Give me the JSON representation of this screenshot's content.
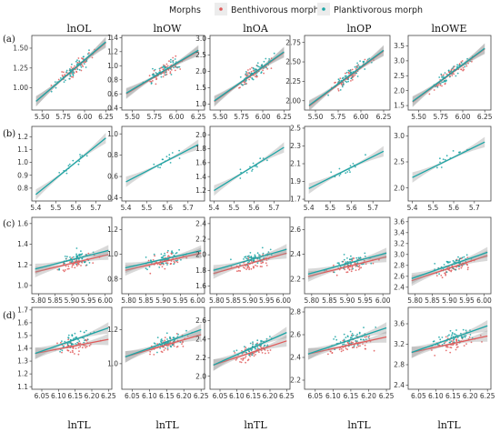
{
  "legend": {
    "title": "Morphs",
    "items": [
      {
        "label": "Benthivorous morph",
        "color": "#e05a5a"
      },
      {
        "label": "Planktivorous morph",
        "color": "#1aa5a5"
      }
    ]
  },
  "columns": [
    "lnOL",
    "lnOW",
    "lnOA",
    "lnOP",
    "lnOWE"
  ],
  "rows": [
    "(a)",
    "(b)",
    "(c)",
    "(d)"
  ],
  "xlabel": "lnTL",
  "chart_data": [
    {
      "row": "(a)",
      "col": "lnOL",
      "type": "scatter",
      "x_ticks": [
        "5.50",
        "5.75",
        "6.00",
        "6.25"
      ],
      "y_ticks": [
        "1.00",
        "1.25",
        "1.50"
      ],
      "xlim": [
        5.38,
        6.32
      ],
      "ylim": [
        0.72,
        1.66
      ],
      "fits": [
        {
          "series": "Benthivorous morph",
          "x": [
            5.43,
            6.25
          ],
          "y": [
            0.83,
            1.57
          ]
        },
        {
          "series": "Planktivorous morph",
          "x": [
            5.43,
            6.25
          ],
          "y": [
            0.83,
            1.58
          ]
        }
      ]
    },
    {
      "row": "(a)",
      "col": "lnOW",
      "type": "scatter",
      "x_ticks": [
        "5.50",
        "5.75",
        "6.00",
        "6.25"
      ],
      "y_ticks": [
        "0.4",
        "0.6",
        "0.8",
        "1.0",
        "1.2",
        "1.4"
      ],
      "xlim": [
        5.38,
        6.32
      ],
      "ylim": [
        0.37,
        1.43
      ],
      "fits": [
        {
          "series": "Benthivorous morph",
          "x": [
            5.43,
            6.25
          ],
          "y": [
            0.6,
            1.21
          ]
        },
        {
          "series": "Planktivorous morph",
          "x": [
            5.43,
            6.25
          ],
          "y": [
            0.61,
            1.22
          ]
        }
      ]
    },
    {
      "row": "(a)",
      "col": "lnOA",
      "type": "scatter",
      "x_ticks": [
        "5.50",
        "5.75",
        "6.00",
        "6.25"
      ],
      "y_ticks": [
        "1.0",
        "1.5",
        "2.0",
        "2.5",
        "3.0"
      ],
      "xlim": [
        5.38,
        6.32
      ],
      "ylim": [
        0.82,
        3.1
      ],
      "fits": [
        {
          "series": "Benthivorous morph",
          "x": [
            5.43,
            6.25
          ],
          "y": [
            1.08,
            2.58
          ]
        },
        {
          "series": "Planktivorous morph",
          "x": [
            5.43,
            6.25
          ],
          "y": [
            1.1,
            2.6
          ]
        }
      ]
    },
    {
      "row": "(a)",
      "col": "lnOP",
      "type": "scatter",
      "x_ticks": [
        "5.50",
        "5.75",
        "6.00",
        "6.25"
      ],
      "y_ticks": [
        "2.00",
        "2.25",
        "2.50",
        "2.75"
      ],
      "xlim": [
        5.38,
        6.32
      ],
      "ylim": [
        1.88,
        2.84
      ],
      "fits": [
        {
          "series": "Benthivorous morph",
          "x": [
            5.43,
            6.25
          ],
          "y": [
            1.93,
            2.64
          ]
        },
        {
          "series": "Planktivorous morph",
          "x": [
            5.43,
            6.25
          ],
          "y": [
            1.94,
            2.65
          ]
        }
      ]
    },
    {
      "row": "(a)",
      "col": "lnOWE",
      "type": "scatter",
      "x_ticks": [
        "5.50",
        "5.75",
        "6.00",
        "6.25"
      ],
      "y_ticks": [
        "1.5",
        "2.0",
        "2.5",
        "3.0",
        "3.5"
      ],
      "xlim": [
        5.38,
        6.32
      ],
      "ylim": [
        1.35,
        3.85
      ],
      "fits": [
        {
          "series": "Benthivorous morph",
          "x": [
            5.43,
            6.25
          ],
          "y": [
            1.62,
            3.4
          ]
        },
        {
          "series": "Planktivorous morph",
          "x": [
            5.43,
            6.25
          ],
          "y": [
            1.64,
            3.42
          ]
        }
      ]
    },
    {
      "row": "(b)",
      "col": "lnOL",
      "type": "scatter",
      "x_ticks": [
        "5.4",
        "5.5",
        "5.6",
        "5.7"
      ],
      "y_ticks": [
        "0.8",
        "0.9",
        "1.0",
        "1.1",
        "1.2"
      ],
      "xlim": [
        5.38,
        5.78
      ],
      "ylim": [
        0.7,
        1.28
      ],
      "fits": [
        {
          "series": "Planktivorous morph",
          "x": [
            5.4,
            5.75
          ],
          "y": [
            0.75,
            1.19
          ]
        }
      ]
    },
    {
      "row": "(b)",
      "col": "lnOW",
      "type": "scatter",
      "x_ticks": [
        "5.4",
        "5.5",
        "5.6",
        "5.7"
      ],
      "y_ticks": [
        "0.4",
        "0.6",
        "0.8",
        "1.0"
      ],
      "xlim": [
        5.38,
        5.78
      ],
      "ylim": [
        0.37,
        1.07
      ],
      "fits": [
        {
          "series": "Planktivorous morph",
          "x": [
            5.4,
            5.75
          ],
          "y": [
            0.55,
            0.9
          ]
        }
      ]
    },
    {
      "row": "(b)",
      "col": "lnOA",
      "type": "scatter",
      "x_ticks": [
        "5.4",
        "5.5",
        "5.6",
        "5.7"
      ],
      "y_ticks": [
        "1.2",
        "1.4",
        "1.6",
        "1.8",
        "2.0"
      ],
      "xlim": [
        5.38,
        5.78
      ],
      "ylim": [
        1.05,
        2.12
      ],
      "fits": [
        {
          "series": "Planktivorous morph",
          "x": [
            5.4,
            5.75
          ],
          "y": [
            1.2,
            1.82
          ]
        }
      ]
    },
    {
      "row": "(b)",
      "col": "lnOP",
      "type": "scatter",
      "x_ticks": [
        "5.4",
        "5.5",
        "5.6",
        "5.7"
      ],
      "y_ticks": [
        "1.7",
        "1.9",
        "2.1",
        "2.3",
        "2.5"
      ],
      "xlim": [
        5.38,
        5.78
      ],
      "ylim": [
        1.68,
        2.52
      ],
      "fits": [
        {
          "series": "Planktivorous morph",
          "x": [
            5.4,
            5.75
          ],
          "y": [
            1.82,
            2.24
          ]
        }
      ]
    },
    {
      "row": "(b)",
      "col": "lnOWE",
      "type": "scatter",
      "x_ticks": [
        "5.4",
        "5.5",
        "5.6",
        "5.7"
      ],
      "y_ticks": [
        "2.0",
        "2.5",
        "3.0"
      ],
      "xlim": [
        5.38,
        5.78
      ],
      "ylim": [
        1.75,
        3.18
      ],
      "fits": [
        {
          "series": "Planktivorous morph",
          "x": [
            5.4,
            5.75
          ],
          "y": [
            2.2,
            2.88
          ]
        }
      ]
    },
    {
      "row": "(c)",
      "col": "lnOL",
      "type": "scatter",
      "x_ticks": [
        "5.80",
        "5.85",
        "5.90",
        "5.95",
        "6.00"
      ],
      "y_ticks": [
        "1.0",
        "1.2",
        "1.4",
        "1.6"
      ],
      "xlim": [
        5.78,
        6.02
      ],
      "ylim": [
        0.92,
        1.66
      ],
      "fits": [
        {
          "series": "Benthivorous morph",
          "x": [
            5.79,
            6.01
          ],
          "y": [
            1.13,
            1.3
          ]
        },
        {
          "series": "Planktivorous morph",
          "x": [
            5.79,
            6.01
          ],
          "y": [
            1.16,
            1.34
          ]
        }
      ]
    },
    {
      "row": "(c)",
      "col": "lnOW",
      "type": "scatter",
      "x_ticks": [
        "5.80",
        "5.85",
        "5.90",
        "5.95",
        "6.00"
      ],
      "y_ticks": [
        "0.8",
        "1.0",
        "1.2"
      ],
      "xlim": [
        5.78,
        6.02
      ],
      "ylim": [
        0.68,
        1.3
      ],
      "fits": [
        {
          "series": "Benthivorous morph",
          "x": [
            5.79,
            6.01
          ],
          "y": [
            0.87,
            1.01
          ]
        },
        {
          "series": "Planktivorous morph",
          "x": [
            5.79,
            6.01
          ],
          "y": [
            0.89,
            1.03
          ]
        }
      ]
    },
    {
      "row": "(c)",
      "col": "lnOA",
      "type": "scatter",
      "x_ticks": [
        "5.80",
        "5.85",
        "5.90",
        "5.95",
        "6.00"
      ],
      "y_ticks": [
        "1.6",
        "1.8",
        "2.0",
        "2.2",
        "2.4"
      ],
      "xlim": [
        5.78,
        6.02
      ],
      "ylim": [
        1.5,
        2.48
      ],
      "fits": [
        {
          "series": "Benthivorous morph",
          "x": [
            5.79,
            6.01
          ],
          "y": [
            1.76,
            2.02
          ]
        },
        {
          "series": "Planktivorous morph",
          "x": [
            5.79,
            6.01
          ],
          "y": [
            1.8,
            2.07
          ]
        }
      ]
    },
    {
      "row": "(c)",
      "col": "lnOP",
      "type": "scatter",
      "x_ticks": [
        "5.80",
        "5.85",
        "5.90",
        "5.95",
        "6.00"
      ],
      "y_ticks": [
        "2.2",
        "2.4",
        "2.6"
      ],
      "xlim": [
        5.78,
        6.02
      ],
      "ylim": [
        2.08,
        2.7
      ],
      "fits": [
        {
          "series": "Benthivorous morph",
          "x": [
            5.79,
            6.01
          ],
          "y": [
            2.22,
            2.38
          ]
        },
        {
          "series": "Planktivorous morph",
          "x": [
            5.79,
            6.01
          ],
          "y": [
            2.24,
            2.41
          ]
        }
      ]
    },
    {
      "row": "(c)",
      "col": "lnOWE",
      "type": "scatter",
      "x_ticks": [
        "5.80",
        "5.85",
        "5.90",
        "5.95",
        "6.00"
      ],
      "y_ticks": [
        "2.4",
        "2.6",
        "2.8",
        "3.0",
        "3.2",
        "3.4",
        "3.6"
      ],
      "xlim": [
        5.78,
        6.02
      ],
      "ylim": [
        2.28,
        3.68
      ],
      "fits": [
        {
          "series": "Benthivorous morph",
          "x": [
            5.79,
            6.01
          ],
          "y": [
            2.52,
            2.98
          ]
        },
        {
          "series": "Planktivorous morph",
          "x": [
            5.79,
            6.01
          ],
          "y": [
            2.56,
            3.04
          ]
        }
      ]
    },
    {
      "row": "(d)",
      "col": "lnOL",
      "type": "scatter",
      "x_ticks": [
        "6.05",
        "6.10",
        "6.15",
        "6.20",
        "6.25"
      ],
      "y_ticks": [
        "1.1",
        "1.2",
        "1.3",
        "1.4",
        "1.5",
        "1.6",
        "1.7"
      ],
      "xlim": [
        6.02,
        6.26
      ],
      "ylim": [
        1.08,
        1.72
      ],
      "fits": [
        {
          "series": "Benthivorous morph",
          "x": [
            6.03,
            6.25
          ],
          "y": [
            1.36,
            1.47
          ]
        },
        {
          "series": "Planktivorous morph",
          "x": [
            6.03,
            6.25
          ],
          "y": [
            1.36,
            1.56
          ]
        }
      ]
    },
    {
      "row": "(d)",
      "col": "lnOW",
      "type": "scatter",
      "x_ticks": [
        "6.05",
        "6.10",
        "6.15",
        "6.20",
        "6.25"
      ],
      "y_ticks": [
        "1.0",
        "1.2"
      ],
      "xlim": [
        6.02,
        6.26
      ],
      "ylim": [
        0.85,
        1.33
      ],
      "fits": [
        {
          "series": "Benthivorous morph",
          "x": [
            6.03,
            6.25
          ],
          "y": [
            1.04,
            1.17
          ]
        },
        {
          "series": "Planktivorous morph",
          "x": [
            6.03,
            6.25
          ],
          "y": [
            1.04,
            1.2
          ]
        }
      ]
    },
    {
      "row": "(d)",
      "col": "lnOA",
      "type": "scatter",
      "x_ticks": [
        "6.05",
        "6.10",
        "6.15",
        "6.20",
        "6.25"
      ],
      "y_ticks": [
        "2.0",
        "2.2",
        "2.4",
        "2.6"
      ],
      "xlim": [
        6.02,
        6.26
      ],
      "ylim": [
        1.86,
        2.74
      ],
      "fits": [
        {
          "series": "Benthivorous morph",
          "x": [
            6.03,
            6.25
          ],
          "y": [
            2.12,
            2.38
          ]
        },
        {
          "series": "Planktivorous morph",
          "x": [
            6.03,
            6.25
          ],
          "y": [
            2.12,
            2.47
          ]
        }
      ]
    },
    {
      "row": "(d)",
      "col": "lnOP",
      "type": "scatter",
      "x_ticks": [
        "6.05",
        "6.10",
        "6.15",
        "6.20",
        "6.25"
      ],
      "y_ticks": [
        "2.2",
        "2.4",
        "2.6",
        "2.8"
      ],
      "xlim": [
        6.02,
        6.26
      ],
      "ylim": [
        2.12,
        2.84
      ],
      "fits": [
        {
          "series": "Benthivorous morph",
          "x": [
            6.03,
            6.25
          ],
          "y": [
            2.43,
            2.58
          ]
        },
        {
          "series": "Planktivorous morph",
          "x": [
            6.03,
            6.25
          ],
          "y": [
            2.43,
            2.66
          ]
        }
      ]
    },
    {
      "row": "(d)",
      "col": "lnOWE",
      "type": "scatter",
      "x_ticks": [
        "6.05",
        "6.10",
        "6.15",
        "6.20",
        "6.25"
      ],
      "y_ticks": [
        "2.4",
        "2.8",
        "3.2",
        "3.6"
      ],
      "xlim": [
        6.02,
        6.26
      ],
      "ylim": [
        2.32,
        3.92
      ],
      "fits": [
        {
          "series": "Benthivorous morph",
          "x": [
            6.03,
            6.25
          ],
          "y": [
            3.04,
            3.36
          ]
        },
        {
          "series": "Planktivorous morph",
          "x": [
            6.03,
            6.25
          ],
          "y": [
            3.04,
            3.56
          ]
        }
      ]
    }
  ]
}
